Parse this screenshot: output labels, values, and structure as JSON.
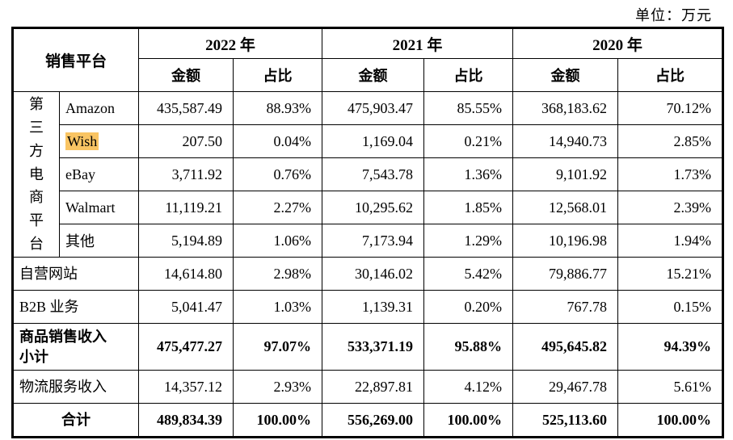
{
  "unit_label": "单位：万元",
  "colors": {
    "highlight": "#F9C463",
    "border": "#000000",
    "text": "#000000"
  },
  "table": {
    "header": {
      "platform_label": "销售平台",
      "year_groups": [
        {
          "year": "2022 年",
          "amount_label": "金额",
          "ratio_label": "占比"
        },
        {
          "year": "2021 年",
          "amount_label": "金额",
          "ratio_label": "占比"
        },
        {
          "year": "2020 年",
          "amount_label": "金额",
          "ratio_label": "占比"
        }
      ]
    },
    "third_party_group_label": "第三方电商平台",
    "rows": [
      {
        "label": "Amazon",
        "type": "third-party",
        "highlight": false,
        "values": [
          "435,587.49",
          "88.93%",
          "475,903.47",
          "85.55%",
          "368,183.62",
          "70.12%"
        ]
      },
      {
        "label": "Wish",
        "type": "third-party",
        "highlight": true,
        "values": [
          "207.50",
          "0.04%",
          "1,169.04",
          "0.21%",
          "14,940.73",
          "2.85%"
        ]
      },
      {
        "label": "eBay",
        "type": "third-party",
        "highlight": false,
        "values": [
          "3,711.92",
          "0.76%",
          "7,543.78",
          "1.36%",
          "9,101.92",
          "1.73%"
        ]
      },
      {
        "label": "Walmart",
        "type": "third-party",
        "highlight": false,
        "values": [
          "11,119.21",
          "2.27%",
          "10,295.62",
          "1.85%",
          "12,568.01",
          "2.39%"
        ]
      },
      {
        "label": "其他",
        "type": "third-party",
        "highlight": false,
        "values": [
          "5,194.89",
          "1.06%",
          "7,173.94",
          "1.29%",
          "10,196.98",
          "1.94%"
        ]
      },
      {
        "label": "自营网站",
        "type": "direct",
        "highlight": false,
        "values": [
          "14,614.80",
          "2.98%",
          "30,146.02",
          "5.42%",
          "79,886.77",
          "15.21%"
        ]
      },
      {
        "label": "B2B 业务",
        "type": "direct",
        "highlight": false,
        "values": [
          "5,041.47",
          "1.03%",
          "1,139.31",
          "0.20%",
          "767.78",
          "0.15%"
        ]
      },
      {
        "label": "商品销售收入\n小计",
        "type": "subtotal",
        "highlight": false,
        "bold": true,
        "values": [
          "475,477.27",
          "97.07%",
          "533,371.19",
          "95.88%",
          "495,645.82",
          "94.39%"
        ]
      },
      {
        "label": "物流服务收入",
        "type": "direct",
        "highlight": false,
        "values": [
          "14,357.12",
          "2.93%",
          "22,897.81",
          "4.12%",
          "29,467.78",
          "5.61%"
        ]
      },
      {
        "label": "合计",
        "type": "total",
        "highlight": false,
        "bold": true,
        "values": [
          "489,834.39",
          "100.00%",
          "556,269.00",
          "100.00%",
          "525,113.60",
          "100.00%"
        ]
      }
    ]
  }
}
